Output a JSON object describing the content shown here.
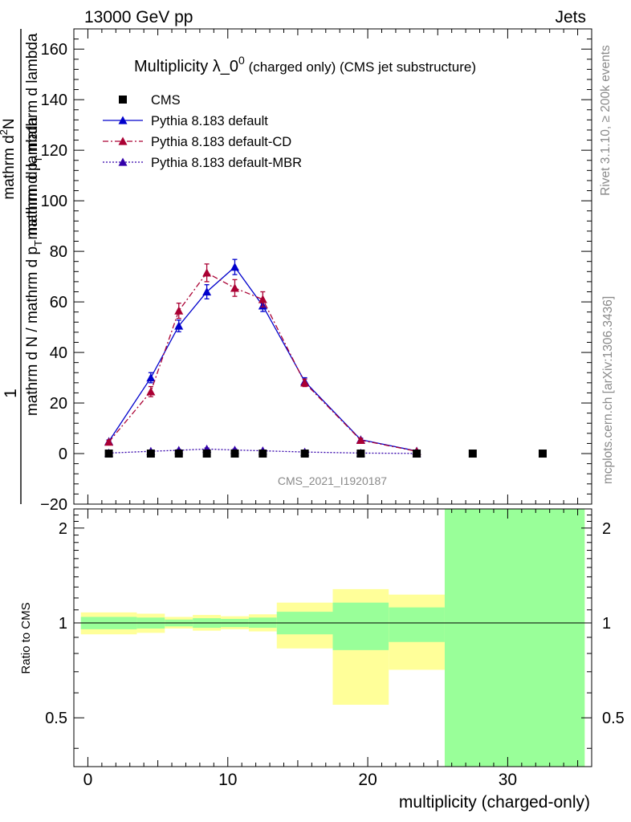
{
  "header": {
    "left": "13000 GeV pp",
    "right": "Jets",
    "side_top": "Rivet 3.1.10, ≥ 200k events",
    "side_bottom": "mcplots.cern.ch [arXiv:1306.3436]",
    "watermark": "CMS_2021_I1920187"
  },
  "colors": {
    "cms": "#000000",
    "default": "#0000cc",
    "cd": "#aa0033",
    "mbr": "#3300aa",
    "band_outer": "#ffff99",
    "band_inner": "#99ff99"
  },
  "chart_data": {
    "type": "scatter",
    "title_main": "Multiplicity λ_0",
    "title_sup": "0",
    "title_sub": "(charged only) (CMS jet substructure)",
    "ylabel_top": "1",
    "ylabel_top_den": "mathrm d N / mathrm d p",
    "ylabel_top_den_sub": "T",
    "ylabel_top_den_tail": " mathrm d lambda",
    "ylabel_num": "mathrm d",
    "ylabel_num_sup": "2",
    "ylabel_num_tail": "N",
    "ylabel_den": "mathrm d p",
    "ylabel_den_sub": "T",
    "ylabel_den_tail": " mathrm d lambda",
    "ylabel_ratio": "Ratio to CMS",
    "xlabel": "multiplicity (charged-only)",
    "xlim": [
      -1,
      36
    ],
    "ylim": [
      -20,
      168
    ],
    "ratio_ylim": [
      0.35,
      2.3
    ],
    "x_ticks": [
      0,
      10,
      20,
      30
    ],
    "y_ticks": [
      -20,
      0,
      20,
      40,
      60,
      80,
      100,
      120,
      140,
      160
    ],
    "ratio_ticks": [
      0.5,
      1,
      2
    ],
    "legend": [
      {
        "label": "CMS",
        "key": "cms"
      },
      {
        "label": "Pythia 8.183 default",
        "key": "default"
      },
      {
        "label": "Pythia 8.183 default-CD",
        "key": "cd"
      },
      {
        "label": "Pythia 8.183 default-MBR",
        "key": "mbr"
      }
    ],
    "series": [
      {
        "name": "CMS",
        "key": "cms",
        "x": [
          1.5,
          4.5,
          6.5,
          8.5,
          10.5,
          12.5,
          15.5,
          19.5,
          23.5,
          27.5,
          32.5
        ],
        "values": [
          0,
          0,
          0,
          0,
          0,
          0,
          0,
          0,
          0,
          0,
          0
        ]
      },
      {
        "name": "Pythia 8.183 default",
        "key": "default",
        "x": [
          1.5,
          4.5,
          6.5,
          8.5,
          10.5,
          12.5,
          15.5,
          19.5,
          23.5
        ],
        "values": [
          4.8,
          30.0,
          50.5,
          64.0,
          73.8,
          58.5,
          28.5,
          5.5,
          1.0
        ],
        "errors": [
          0.6,
          2.0,
          2.3,
          2.8,
          3.0,
          2.3,
          1.5,
          0.6,
          0.3
        ]
      },
      {
        "name": "Pythia 8.183 default-CD",
        "key": "cd",
        "x": [
          1.5,
          4.5,
          6.5,
          8.5,
          10.5,
          12.5,
          15.5,
          19.5,
          23.5
        ],
        "values": [
          4.6,
          24.5,
          56.5,
          71.5,
          65.5,
          61.0,
          28.0,
          5.3,
          0.9
        ],
        "errors": [
          0.6,
          2.0,
          3.0,
          3.5,
          3.3,
          3.0,
          1.5,
          0.6,
          0.3
        ]
      },
      {
        "name": "Pythia 8.183 default-MBR",
        "key": "mbr",
        "x": [
          1.5,
          4.5,
          6.5,
          8.5,
          10.5,
          12.5,
          15.5,
          19.5,
          23.5
        ],
        "values": [
          0.2,
          0.9,
          1.3,
          1.8,
          1.4,
          1.1,
          0.6,
          0.2,
          0.05
        ],
        "errors": [
          0.1,
          0.3,
          0.3,
          0.4,
          0.4,
          0.3,
          0.2,
          0.1,
          0.05
        ]
      }
    ],
    "ratio_bands": {
      "edges": [
        -0.5,
        3.5,
        5.5,
        7.5,
        9.5,
        11.5,
        13.5,
        17.5,
        21.5,
        25.5,
        35.5
      ],
      "outer_low": [
        0.92,
        0.93,
        0.96,
        0.945,
        0.955,
        0.94,
        0.83,
        0.55,
        0.71,
        0.35
      ],
      "outer_high": [
        1.08,
        1.07,
        1.045,
        1.06,
        1.05,
        1.065,
        1.16,
        1.28,
        1.23,
        2.3
      ],
      "inner_low": [
        0.955,
        0.96,
        0.975,
        0.965,
        0.97,
        0.965,
        0.92,
        0.82,
        0.87,
        0.35
      ],
      "inner_high": [
        1.045,
        1.04,
        1.025,
        1.035,
        1.03,
        1.04,
        1.085,
        1.16,
        1.12,
        2.3
      ]
    }
  }
}
